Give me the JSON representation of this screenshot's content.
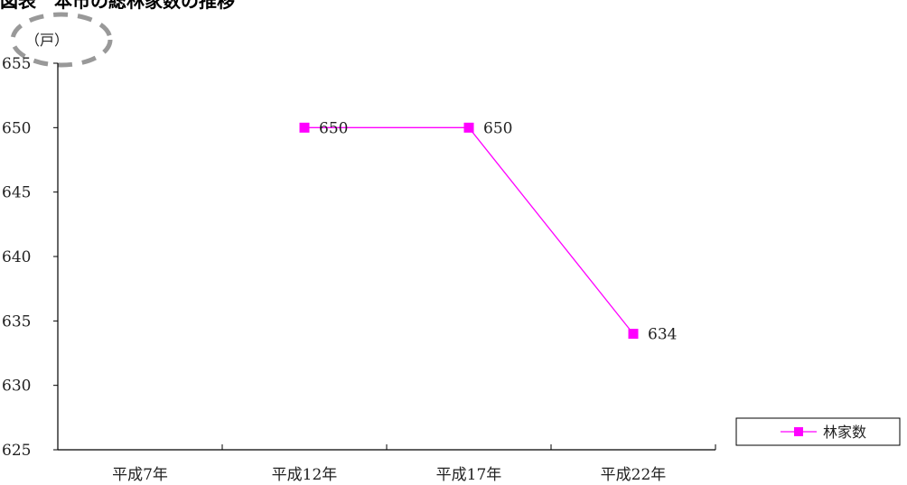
{
  "chart_data": {
    "type": "line",
    "title": "図表　本市の総林家数の推移",
    "unit_label": "（戸）",
    "categories": [
      "平成7年",
      "平成12年",
      "平成17年",
      "平成22年"
    ],
    "series": [
      {
        "name": "林家数",
        "values": [
          null,
          650,
          650,
          634
        ],
        "data_labels": [
          "",
          "650",
          "650",
          "634"
        ]
      }
    ],
    "ylim": [
      625,
      655
    ],
    "yticks": [
      625,
      630,
      635,
      640,
      645,
      650,
      655
    ],
    "ytick_labels": [
      "625",
      "630",
      "635",
      "640",
      "645",
      "650",
      "655"
    ],
    "grid": false,
    "legend_position": "right",
    "colors": {
      "series": "#ff00ff",
      "axis": "#000000",
      "highlight_ellipse": "#999999"
    },
    "markers": "square"
  }
}
